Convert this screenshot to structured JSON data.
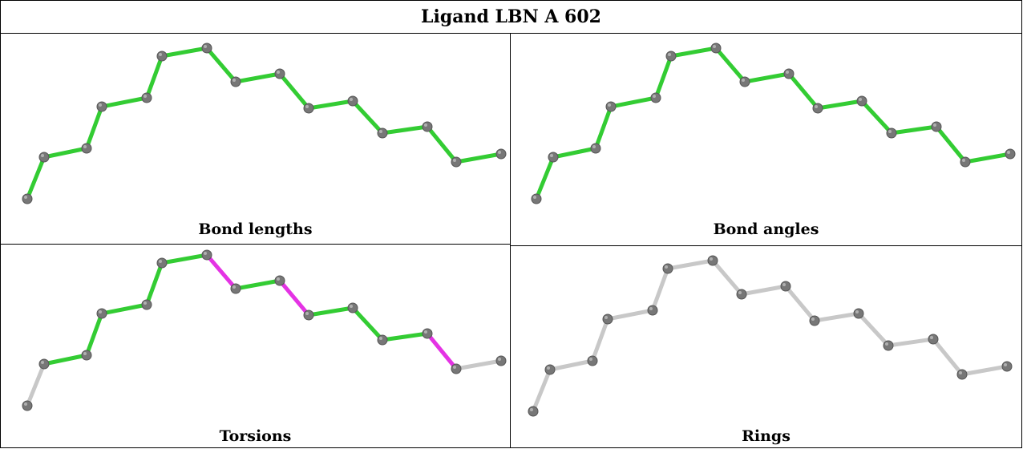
{
  "title": "Ligand LBN A 602",
  "colors": {
    "ok": "#33cc33",
    "outlier": "#e433e4",
    "neutral": "#c8c8c8",
    "atom": "#777777"
  },
  "panels": [
    {
      "label": "Bond lengths",
      "bond_states": [
        "ok",
        "ok",
        "ok",
        "ok",
        "ok",
        "ok",
        "ok",
        "ok",
        "ok",
        "ok",
        "ok",
        "ok",
        "ok",
        "ok",
        "ok"
      ]
    },
    {
      "label": "Bond angles",
      "bond_states": [
        "ok",
        "ok",
        "ok",
        "ok",
        "ok",
        "ok",
        "ok",
        "ok",
        "ok",
        "ok",
        "ok",
        "ok",
        "ok",
        "ok",
        "ok"
      ]
    },
    {
      "label": "Torsions",
      "bond_states": [
        "neutral",
        "ok",
        "ok",
        "ok",
        "ok",
        "ok",
        "outlier",
        "ok",
        "outlier",
        "ok",
        "ok",
        "ok",
        "outlier",
        "neutral",
        "neutral"
      ]
    },
    {
      "label": "Rings",
      "bond_states": [
        "neutral",
        "neutral",
        "neutral",
        "neutral",
        "neutral",
        "neutral",
        "neutral",
        "neutral",
        "neutral",
        "neutral",
        "neutral",
        "neutral",
        "neutral",
        "neutral",
        "neutral"
      ]
    }
  ]
}
